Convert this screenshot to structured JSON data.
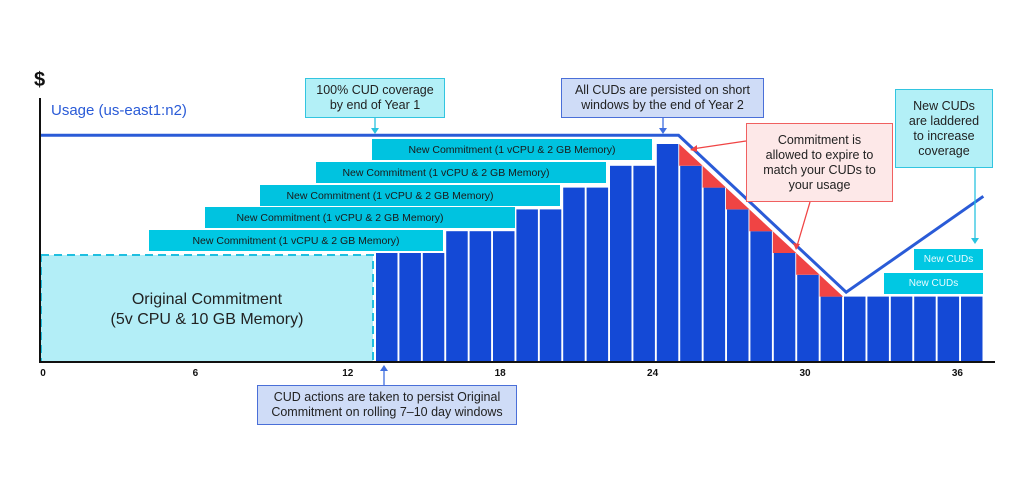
{
  "y_axis_symbol": "$",
  "usage_label": "Usage (us-east1:n2)",
  "original_commitment": {
    "line1": "Original Commitment",
    "line2": "(5v CPU & 10 GB Memory)"
  },
  "new_commitments": [
    "New Commitment (1 vCPU & 2 GB Memory)",
    "New Commitment (1 vCPU & 2 GB Memory)",
    "New Commitment (1 vCPU & 2 GB Memory)",
    "New Commitment (1 vCPU & 2 GB Memory)",
    "New Commitment (1 vCPU & 2 GB Memory)"
  ],
  "new_cuds": [
    "New CUDs",
    "New CUDs"
  ],
  "callouts": {
    "coverage_year1": [
      "100% CUD coverage",
      "by end of Year 1"
    ],
    "persisted_year2": [
      "All CUDs are persisted on short",
      "windows by the end of Year 2"
    ],
    "expire": [
      "Commitment is",
      "allowed to expire to",
      "match your CUDs to",
      "your usage"
    ],
    "laddered": [
      "New CUDs",
      "are laddered",
      "to increase",
      "coverage"
    ],
    "cud_actions": [
      "CUD actions are taken to persist Original",
      "Commitment on rolling 7–10 day windows"
    ]
  },
  "colors": {
    "usage": "#2a5bd7",
    "bar": "#1449d6",
    "commitment": "#00c8e3",
    "original_fill": "#b3eef7",
    "expire": "#f04444"
  },
  "chart_data": {
    "type": "bar",
    "xlabel": "",
    "ylabel": "$",
    "x_ticks": [
      0,
      6,
      12,
      18,
      24,
      30,
      36
    ],
    "x_tick_labels": [
      "0",
      "6",
      "12",
      "18",
      "24",
      "30",
      "36"
    ],
    "xlim": [
      0,
      38
    ],
    "unit": "vCPU",
    "bars_start_month": 13,
    "bar_values": [
      5,
      5,
      5,
      6,
      6,
      6,
      7,
      7,
      8,
      8,
      9,
      9,
      10,
      9,
      8,
      7,
      6,
      5,
      4,
      3,
      3,
      3,
      3,
      3,
      3,
      3
    ],
    "usage_line": [
      [
        0,
        10.4
      ],
      [
        25.1,
        10.4
      ],
      [
        31.7,
        3.2
      ],
      [
        37.1,
        7.6
      ]
    ]
  }
}
